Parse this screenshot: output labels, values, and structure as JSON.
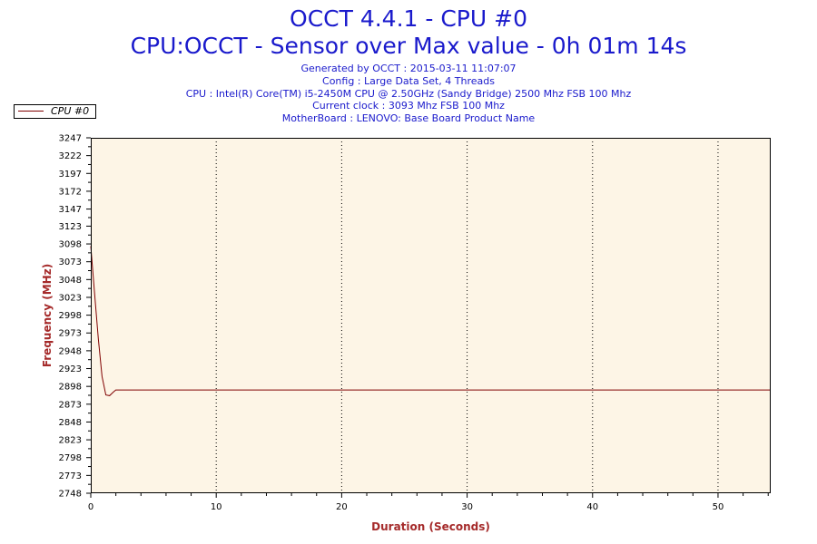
{
  "header": {
    "title": "OCCT 4.4.1 - CPU #0",
    "subtitle": "CPU:OCCT - Sensor over Max value - 0h 01m 14s",
    "info_lines": [
      "Generated by OCCT : 2015-03-11 11:07:07",
      "Config : Large Data Set, 4 Threads",
      "CPU : Intel(R) Core(TM) i5-2450M CPU @ 2.50GHz (Sandy Bridge) 2500 Mhz FSB 100 Mhz",
      "Current clock : 3093 Mhz FSB 100 Mhz",
      "MotherBoard : LENOVO: Base Board Product Name"
    ]
  },
  "colors": {
    "title": "#1a1acc",
    "axis_title": "#a52a2a",
    "plot_background": "#fdf5e6",
    "series_line": "#800000"
  },
  "chart_data": {
    "type": "line",
    "title": "OCCT 4.4.1 - CPU #0",
    "xlabel": "Duration (Seconds)",
    "ylabel": "Frequency (MHz)",
    "xlim": [
      0,
      54.2
    ],
    "ylim": [
      2748,
      3247
    ],
    "x_ticks": [
      0,
      10,
      20,
      30,
      40,
      50
    ],
    "y_ticks": [
      2748,
      2773,
      2798,
      2823,
      2848,
      2873,
      2898,
      2923,
      2948,
      2973,
      2998,
      3023,
      3048,
      3073,
      3098,
      3123,
      3147,
      3172,
      3197,
      3222,
      3247
    ],
    "grid": "vertical dotted at major x ticks",
    "legend": "top-left",
    "series": [
      {
        "name": "CPU #0",
        "x": [
          0,
          0.3,
          0.6,
          0.9,
          1.2,
          1.5,
          1.8,
          2.0,
          3,
          10,
          20,
          30,
          40,
          50,
          54.2
        ],
        "y": [
          3095,
          3030,
          2965,
          2912,
          2886,
          2885,
          2890,
          2893,
          2893,
          2893,
          2893,
          2893,
          2893,
          2893,
          2893
        ]
      }
    ]
  }
}
